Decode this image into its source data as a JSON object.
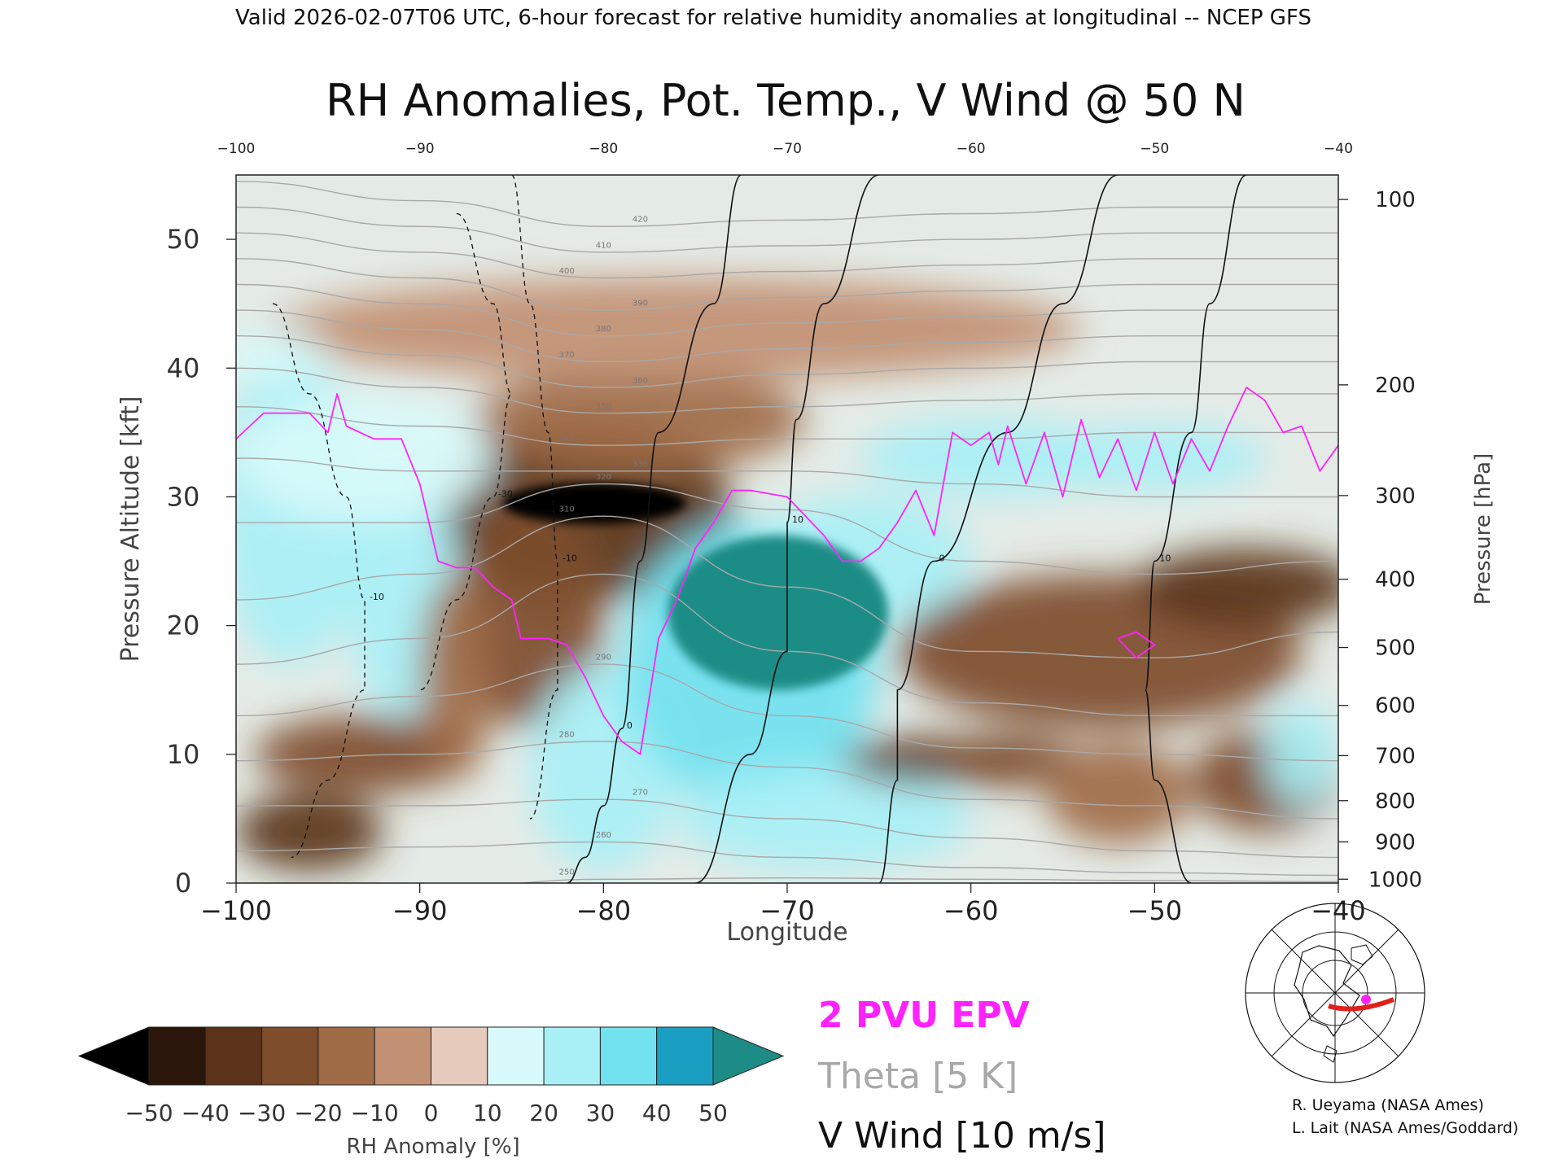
{
  "header": "Valid 2026-02-07T06 UTC, 6-hour forecast for relative humidity anomalies at longitudinal -- NCEP GFS",
  "chart_data": {
    "type": "heatmap",
    "title": "RH Anomalies, Pot. Temp., V Wind @ 50 N",
    "xlabel": "Longitude",
    "ylabel": "Pressure Altitude [kft]",
    "y2label": "Pressure [hPa]",
    "xlim": [
      -100,
      -40
    ],
    "ylim": [
      0,
      55
    ],
    "x_ticks": [
      "-100",
      "-90",
      "-80",
      "-70",
      "-60",
      "-50",
      "-40"
    ],
    "x_ticks_top": [
      "-100",
      "-90",
      "-80",
      "-70",
      "-60",
      "-50",
      "-40"
    ],
    "y_ticks": [
      "0",
      "10",
      "20",
      "30",
      "40",
      "50"
    ],
    "pressure_ticks": [
      {
        "label": "100",
        "kft": 53.1
      },
      {
        "label": "200",
        "kft": 38.7
      },
      {
        "label": "300",
        "kft": 30.1
      },
      {
        "label": "400",
        "kft": 23.6
      },
      {
        "label": "500",
        "kft": 18.3
      },
      {
        "label": "600",
        "kft": 13.8
      },
      {
        "label": "700",
        "kft": 9.9
      },
      {
        "label": "800",
        "kft": 6.4
      },
      {
        "label": "900",
        "kft": 3.2
      },
      {
        "label": "1000",
        "kft": 0.3
      }
    ],
    "colorbar": {
      "label": "RH Anomaly [%]",
      "ticks": [
        "-50",
        "-40",
        "-30",
        "-20",
        "-10",
        "0",
        "10",
        "20",
        "30",
        "40",
        "50"
      ],
      "colors": [
        "#2a160a",
        "#5a331a",
        "#7e4d2b",
        "#a06b47",
        "#c29073",
        "#e6cbbd",
        "#d8fafa",
        "#a8f0f6",
        "#72e2f0",
        "#3fcbe6",
        "#1a9fc2"
      ],
      "under_color": "#000000",
      "over_color": "#1d8c86"
    },
    "anomaly_regions": [
      {
        "x": -80.5,
        "y": 29.5,
        "rx": 5,
        "ry": 1.6,
        "value": -60
      },
      {
        "x": -81,
        "y": 29,
        "rx": 8,
        "ry": 7,
        "value": -35
      },
      {
        "x": -84,
        "y": 21,
        "rx": 4,
        "ry": 9,
        "value": -25
      },
      {
        "x": -78,
        "y": 36,
        "rx": 9,
        "ry": 4,
        "value": -12
      },
      {
        "x": -76,
        "y": 43,
        "rx": 22,
        "ry": 4,
        "value": -5
      },
      {
        "x": -97,
        "y": 29,
        "rx": 4,
        "ry": 12,
        "value": 25
      },
      {
        "x": -91,
        "y": 23,
        "rx": 3,
        "ry": 10,
        "value": 20
      },
      {
        "x": -93,
        "y": 33,
        "rx": 7,
        "ry": 5,
        "value": 15
      },
      {
        "x": -98,
        "y": 41,
        "rx": 3,
        "ry": 2,
        "value": 15
      },
      {
        "x": -93,
        "y": 10,
        "rx": 6,
        "ry": 3,
        "value": -30
      },
      {
        "x": -96,
        "y": 4,
        "rx": 4,
        "ry": 3,
        "value": -35
      },
      {
        "x": -88,
        "y": 16,
        "rx": 2,
        "ry": 8,
        "value": -15
      },
      {
        "x": -80,
        "y": 9,
        "rx": 4,
        "ry": 8,
        "value": 20
      },
      {
        "x": -70.5,
        "y": 21,
        "rx": 6,
        "ry": 6,
        "value": 60
      },
      {
        "x": -72,
        "y": 17,
        "rx": 7,
        "ry": 11,
        "value": 35
      },
      {
        "x": -66,
        "y": 25,
        "rx": 6,
        "ry": 5,
        "value": 20
      },
      {
        "x": -68,
        "y": 5,
        "rx": 8,
        "ry": 4,
        "value": 22
      },
      {
        "x": -59,
        "y": 33,
        "rx": 7,
        "ry": 3,
        "value": 25
      },
      {
        "x": -50,
        "y": 33,
        "rx": 6,
        "ry": 2.5,
        "value": 25
      },
      {
        "x": -53,
        "y": 18,
        "rx": 11,
        "ry": 6,
        "value": -30
      },
      {
        "x": -45,
        "y": 23,
        "rx": 6,
        "ry": 3,
        "value": -35
      },
      {
        "x": -62,
        "y": 9.5,
        "rx": 5,
        "ry": 1.8,
        "value": -40
      },
      {
        "x": -58,
        "y": 9.5,
        "rx": 4,
        "ry": 2,
        "value": -25
      },
      {
        "x": -44,
        "y": 8,
        "rx": 4,
        "ry": 4,
        "value": -25
      },
      {
        "x": -52,
        "y": 7,
        "rx": 4,
        "ry": 4,
        "value": -15
      },
      {
        "x": -42,
        "y": 10,
        "rx": 2,
        "ry": 4,
        "value": 25
      }
    ],
    "theta_contours": [
      {
        "label": "250",
        "x": [
          -100,
          -90,
          -80,
          -70,
          -60,
          -50,
          -40
        ],
        "y": [
          -1,
          -0.5,
          0.3,
          0.4,
          0.3,
          0.2,
          0.1
        ]
      },
      {
        "label": "260",
        "x": [
          -100,
          -90,
          -80,
          -70,
          -60,
          -50,
          -40
        ],
        "y": [
          2.5,
          2.8,
          3.2,
          2.0,
          1.2,
          0.8,
          0.6
        ]
      },
      {
        "label": "270",
        "x": [
          -100,
          -90,
          -80,
          -70,
          -60,
          -50,
          -40
        ],
        "y": [
          6.0,
          6.0,
          6.5,
          5.0,
          3.5,
          2.5,
          2.0
        ]
      },
      {
        "label": "280",
        "x": [
          -100,
          -90,
          -80,
          -70,
          -60,
          -50,
          -40
        ],
        "y": [
          9.5,
          10.0,
          11.0,
          9.0,
          6.5,
          6.0,
          5.0
        ]
      },
      {
        "label": "290",
        "x": [
          -100,
          -90,
          -80,
          -70,
          -60,
          -50,
          -40
        ],
        "y": [
          13.0,
          14.5,
          17.0,
          13.0,
          10.5,
          10.0,
          9.5
        ]
      },
      {
        "label": "300",
        "x": [
          -100,
          -90,
          -80,
          -70,
          -60,
          -50,
          -40
        ],
        "y": [
          17.0,
          19.0,
          24.0,
          18.0,
          14.0,
          13.0,
          13.0
        ]
      },
      {
        "label": "310",
        "x": [
          -100,
          -90,
          -80,
          -70,
          -60,
          -50,
          -40
        ],
        "y": [
          22.0,
          24.0,
          28.5,
          23.0,
          18.0,
          17.5,
          19.5
        ]
      },
      {
        "label": "320",
        "x": [
          -100,
          -90,
          -80,
          -70,
          -60,
          -50,
          -40
        ],
        "y": [
          28.0,
          28.0,
          31.0,
          29.0,
          25.0,
          24.0,
          25.0
        ]
      },
      {
        "label": "330",
        "x": [
          -100,
          -90,
          -80,
          -70,
          -60,
          -50,
          -40
        ],
        "y": [
          33.0,
          32.0,
          32.0,
          32.0,
          31.0,
          30.0,
          30.0
        ]
      },
      {
        "label": "340",
        "x": [
          -100,
          -90,
          -80,
          -70,
          -60,
          -50,
          -40
        ],
        "y": [
          37.0,
          35.5,
          34.0,
          34.5,
          34.5,
          35.0,
          35.0
        ]
      },
      {
        "label": "350",
        "x": [
          -100,
          -90,
          -80,
          -70,
          -60,
          -50,
          -40
        ],
        "y": [
          40.0,
          38.5,
          36.5,
          37.0,
          37.5,
          38.0,
          38.0
        ]
      },
      {
        "label": "360",
        "x": [
          -100,
          -90,
          -80,
          -70,
          -60,
          -50,
          -40
        ],
        "y": [
          42.5,
          41.0,
          38.5,
          39.5,
          40.0,
          40.5,
          40.5
        ]
      },
      {
        "label": "370",
        "x": [
          -100,
          -90,
          -80,
          -70,
          -60,
          -50,
          -40
        ],
        "y": [
          44.5,
          43.0,
          40.5,
          41.5,
          42.0,
          42.5,
          42.5
        ]
      },
      {
        "label": "380",
        "x": [
          -100,
          -90,
          -80,
          -70,
          -60,
          -50,
          -40
        ],
        "y": [
          46.5,
          45.0,
          42.5,
          43.5,
          44.0,
          44.5,
          44.5
        ]
      },
      {
        "label": "390",
        "x": [
          -100,
          -90,
          -80,
          -70,
          -60,
          -50,
          -40
        ],
        "y": [
          48.5,
          47.0,
          44.5,
          45.5,
          46.0,
          46.5,
          46.5
        ]
      },
      {
        "label": "400",
        "x": [
          -100,
          -90,
          -80,
          -70,
          -60,
          -50,
          -40
        ],
        "y": [
          50.5,
          49.0,
          47.0,
          47.5,
          48.0,
          48.5,
          48.5
        ]
      },
      {
        "label": "410",
        "x": [
          -100,
          -90,
          -80,
          -70,
          -60,
          -50,
          -40
        ],
        "y": [
          52.5,
          51.0,
          49.0,
          49.5,
          50.0,
          50.5,
          50.5
        ]
      },
      {
        "label": "420",
        "x": [
          -100,
          -90,
          -80,
          -70,
          -60,
          -50,
          -40
        ],
        "y": [
          54.5,
          53.0,
          51.0,
          51.5,
          52.0,
          52.5,
          52.5
        ]
      }
    ],
    "epv_2pvu": {
      "x": [
        -100,
        -98.5,
        -96,
        -95,
        -94.5,
        -94,
        -92.5,
        -91,
        -90,
        -89,
        -88,
        -87,
        -86,
        -85,
        -84.5,
        -83,
        -82,
        -81,
        -80,
        -79,
        -78,
        -77,
        -76,
        -75,
        -74,
        -73,
        -72,
        -70,
        -68,
        -67,
        -66,
        -65,
        -64,
        -63,
        -62,
        -61,
        -60,
        -59,
        -58.5,
        -58,
        -57,
        -56,
        -55,
        -54,
        -53,
        -52,
        -51,
        -50,
        -49,
        -48,
        -47,
        -46,
        -45,
        -44,
        -43,
        -42,
        -41,
        -40
      ],
      "y": [
        34.5,
        36.5,
        36.5,
        35,
        38,
        35.5,
        34.5,
        34.5,
        31,
        25,
        24.5,
        24.5,
        23,
        22,
        19,
        19,
        18.5,
        16,
        13,
        11,
        10,
        19,
        22,
        26,
        28,
        30.5,
        30.5,
        30,
        27,
        25,
        25,
        26,
        28,
        30.5,
        27,
        35,
        34,
        35,
        32.5,
        35.5,
        31,
        35,
        30,
        36,
        31.5,
        34.5,
        30.5,
        35,
        31,
        34.5,
        32,
        35.5,
        38.5,
        37.5,
        35,
        35.5,
        32,
        34
      ]
    },
    "epv_small_loop": {
      "x": [
        -52,
        -51,
        -50,
        -51,
        -52
      ],
      "y": [
        19,
        19.5,
        18.5,
        17.5,
        19
      ]
    },
    "vwind_contours": [
      {
        "label": "0",
        "style": "solid",
        "x": [
          -72.5,
          -74,
          -77,
          -78,
          -79,
          -80,
          -81,
          -82
        ],
        "y": [
          55,
          45,
          35,
          25,
          12,
          6,
          2,
          0
        ]
      },
      {
        "label": "10",
        "style": "solid",
        "x": [
          -65,
          -68,
          -69.5,
          -70,
          -70,
          -72,
          -75
        ],
        "y": [
          55,
          45,
          36,
          28,
          18,
          10,
          0
        ]
      },
      {
        "label": "0",
        "style": "solid",
        "x": [
          -52,
          -55,
          -58,
          -62,
          -64,
          -64,
          -65
        ],
        "y": [
          55,
          45,
          35,
          25,
          15,
          8,
          0
        ]
      },
      {
        "label": "10",
        "style": "solid",
        "x": [
          -45,
          -47,
          -48,
          -50,
          -50.5,
          -50,
          -48
        ],
        "y": [
          55,
          45,
          35,
          25,
          15,
          8,
          0
        ]
      },
      {
        "label": "-10",
        "style": "dashed",
        "x": [
          -85,
          -84,
          -83,
          -82.5,
          -82.5,
          -84
        ],
        "y": [
          55,
          45,
          35,
          25,
          15,
          5
        ]
      },
      {
        "label": "-30",
        "style": "dashed",
        "x": [
          -88,
          -86,
          -85,
          -86,
          -88,
          -90
        ],
        "y": [
          52,
          45,
          38,
          30,
          22,
          15
        ]
      },
      {
        "label": "-10",
        "style": "dashed",
        "x": [
          -98,
          -96,
          -94,
          -93,
          -93,
          -95,
          -97
        ],
        "y": [
          45,
          38,
          30,
          22,
          15,
          8,
          2
        ]
      }
    ]
  },
  "legend": {
    "epv": "2 PVU EPV",
    "theta": "Theta [5 K]",
    "vwind": "V Wind [10 m/s]",
    "epv_color": "#ff22ff",
    "theta_color": "#a8a8a8",
    "vwind_color": "#111111"
  },
  "credits": [
    "R. Ueyama (NASA Ames)",
    "L. Lait (NASA Ames/Goddard)"
  ],
  "inset_map": {
    "icon": "globe-map-icon",
    "marker_color": "#ff22ff",
    "line_color": "#e0201c"
  }
}
